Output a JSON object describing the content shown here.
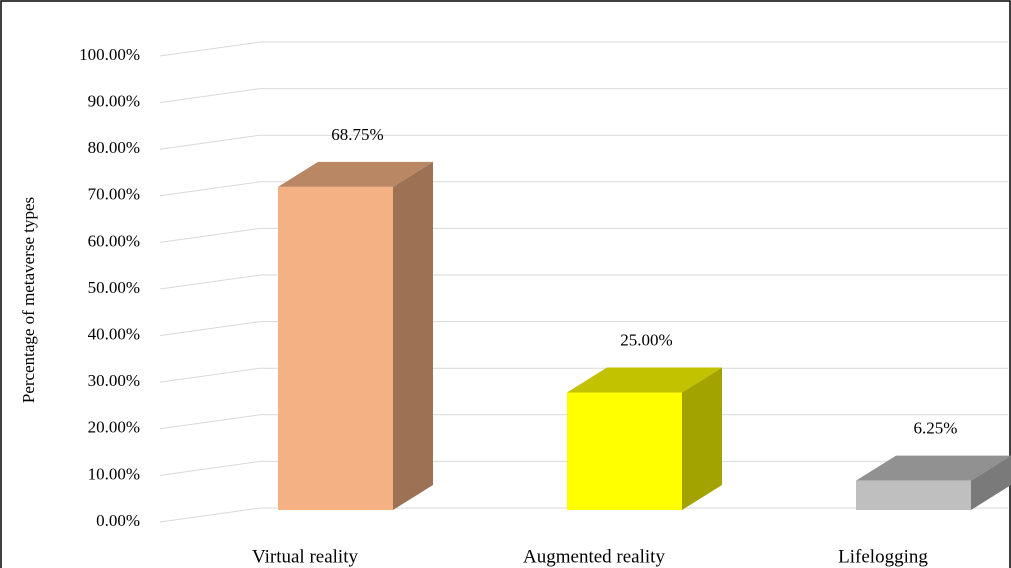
{
  "chart_data": {
    "type": "bar3d",
    "y_label": "Percentage of metaverse types",
    "categories": [
      "Virtual reality",
      "Augmented reality",
      "Lifelogging"
    ],
    "values": [
      68.75,
      25.0,
      6.25
    ],
    "value_labels": [
      "68.75%",
      "25.00%",
      "6.25%"
    ],
    "colors": [
      "#f4b183",
      "#ffff00",
      "#bfbfbf"
    ],
    "ylim": [
      0,
      100
    ],
    "yticks": [
      {
        "value": 0,
        "label": "0.00%"
      },
      {
        "value": 10,
        "label": "10.00%"
      },
      {
        "value": 20,
        "label": "20.00%"
      },
      {
        "value": 30,
        "label": "30.00%"
      },
      {
        "value": 40,
        "label": "40.00%"
      },
      {
        "value": 50,
        "label": "50.00%"
      },
      {
        "value": 60,
        "label": "60.00%"
      },
      {
        "value": 70,
        "label": "70.00%"
      },
      {
        "value": 80,
        "label": "80.00%"
      },
      {
        "value": 90,
        "label": "90.00%"
      },
      {
        "value": 100,
        "label": "100.00%"
      }
    ],
    "grid": true
  }
}
